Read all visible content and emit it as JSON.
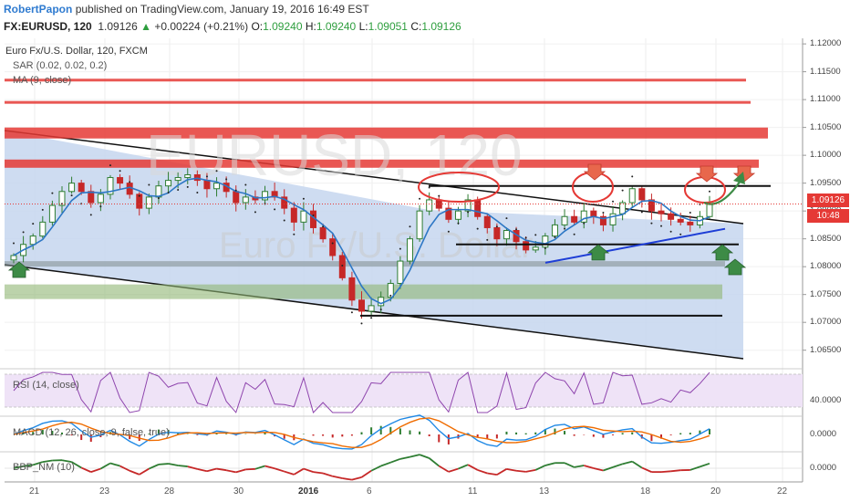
{
  "header": {
    "author": "RobertPapon",
    "published_text": "published on TradingView.com, January 19, 2016 16:49 EST",
    "symbol": "FX:EURUSD, 120",
    "last": "1.09126",
    "change_arrow": "▲",
    "change": "+0.00224 (+0.21%)",
    "o_label": "O:",
    "o_value": "1.09240",
    "h_label": "H:",
    "h_value": "1.09240",
    "l_label": "L:",
    "l_value": "1.09051",
    "c_label": "C:",
    "c_value": "1.09126"
  },
  "legend": {
    "title": "Euro Fx/U.S. Dollar, 120, FXCM",
    "sar": "SAR (0.02, 0.02, 0.2)",
    "ma": "MA (9, close)",
    "rsi": "RSI (14, close)",
    "macd": "MACD (12, 26, close, 9, false, true)",
    "bbp": "BBP_NM (10)"
  },
  "watermark": {
    "symbol": "EURUSD, 120",
    "name": "Euro Fx/U.S. Dollar"
  },
  "price_tags": {
    "last": "1.09126",
    "countdown": "10:48"
  },
  "price_axis": [
    "1.12000",
    "1.11500",
    "1.11000",
    "1.10500",
    "1.10000",
    "1.09500",
    "1.09000",
    "1.08500",
    "1.08000",
    "1.07500",
    "1.07000",
    "1.06500"
  ],
  "rsi_axis": "40.0000",
  "macd_axis": "0.0000",
  "bbp_axis": "0.0000",
  "time_axis": [
    {
      "label": "21",
      "year": false
    },
    {
      "label": "23",
      "year": false
    },
    {
      "label": "28",
      "year": false
    },
    {
      "label": "30",
      "year": false
    },
    {
      "label": "2016",
      "year": true
    },
    {
      "label": "6",
      "year": false
    },
    {
      "label": "11",
      "year": false
    },
    {
      "label": "13",
      "year": false
    },
    {
      "label": "18",
      "year": false
    },
    {
      "label": "20",
      "year": false
    },
    {
      "label": "22",
      "year": false
    }
  ],
  "colors": {
    "up_candle": "#2e7d32",
    "down_candle": "#c62828",
    "ma_line": "#2d77c5",
    "sar_dots": "#222222",
    "resistance": "#e53935",
    "channel_fill": "#c5d6ef",
    "rsi_band": "#efe3f7",
    "rsi_line": "#8e44ad",
    "macd_line": "#1e88e5",
    "signal_line": "#ef6c00",
    "bbp_up": "#2e7d32",
    "bbp_down": "#c62828"
  },
  "chart_data": {
    "type": "candlestick",
    "symbol": "EURUSD",
    "timeframe": "120",
    "price_range": [
      1.062,
      1.121
    ],
    "closes": [
      1.082,
      1.084,
      1.0855,
      1.088,
      1.091,
      1.0935,
      1.095,
      1.0935,
      1.0915,
      1.093,
      1.096,
      1.095,
      1.093,
      1.0905,
      1.0925,
      1.0945,
      1.0955,
      1.096,
      1.0965,
      1.0955,
      1.094,
      1.095,
      1.0935,
      1.0915,
      1.0925,
      1.092,
      1.0935,
      1.0925,
      1.0905,
      1.088,
      1.09,
      1.087,
      1.085,
      1.082,
      1.078,
      1.074,
      1.072,
      1.073,
      1.0745,
      1.077,
      1.081,
      1.085,
      1.09,
      1.092,
      1.0905,
      1.0885,
      1.09,
      1.092,
      1.089,
      1.087,
      1.085,
      1.0865,
      1.0845,
      1.083,
      1.0835,
      1.0855,
      1.0875,
      1.089,
      1.088,
      1.09,
      1.089,
      1.0875,
      1.0895,
      1.0915,
      1.094,
      1.092,
      1.09,
      1.0895,
      1.0885,
      1.088,
      1.0875,
      1.089,
      1.0913
    ],
    "resistance_zones": [
      1.1135,
      1.1095,
      1.104,
      1.0985
    ],
    "support_zones": [
      1.0805,
      1.0755
    ],
    "horizontal_lines": [
      1.0945,
      1.084,
      1.0712
    ],
    "rsi_level": 40,
    "annotations": [
      "down arrows near 1.095 resistance",
      "up arrows at 1.080 support",
      "ellipses at triple-top resistance"
    ]
  }
}
